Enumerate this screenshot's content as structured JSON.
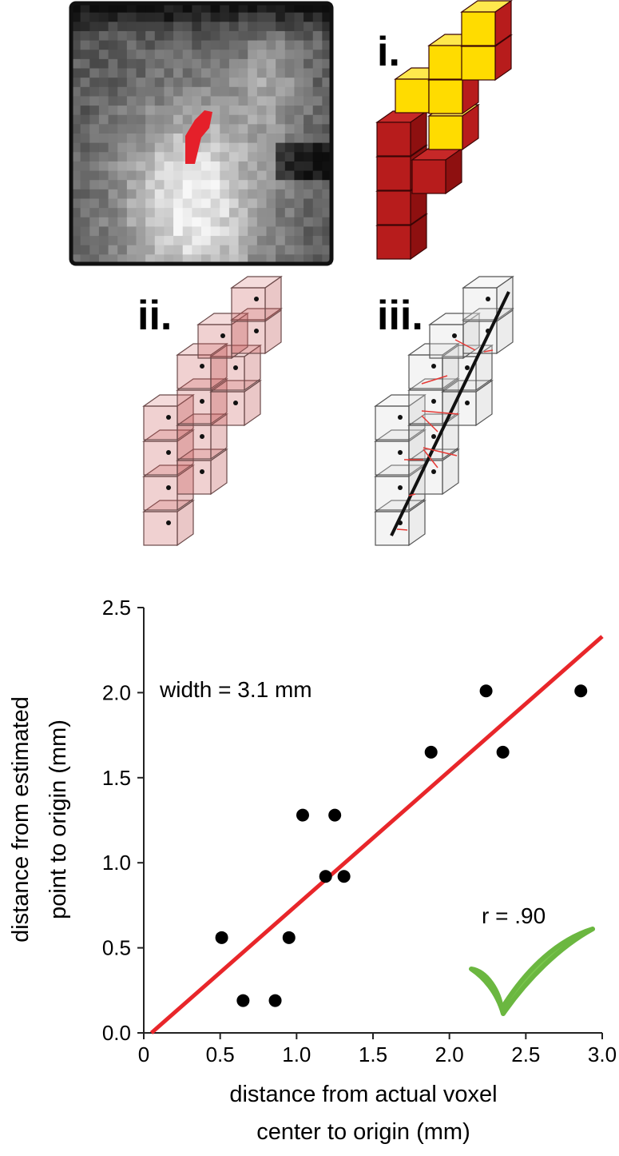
{
  "panel_labels": [
    "i.",
    "ii.",
    "iii."
  ],
  "chart_data": {
    "type": "scatter",
    "x": [
      0.51,
      0.65,
      0.86,
      0.95,
      1.04,
      1.25,
      1.19,
      1.31,
      1.88,
      2.24,
      2.35,
      2.86
    ],
    "values": [
      0.56,
      0.19,
      0.19,
      0.56,
      1.28,
      1.28,
      0.92,
      0.92,
      1.65,
      2.01,
      1.65,
      2.01
    ],
    "color": "#000000",
    "fit": {
      "x": [
        0.05,
        3.0
      ],
      "values": [
        0,
        2.33
      ],
      "color": "#e8262a"
    },
    "xlim": [
      0,
      3
    ],
    "ylim": [
      0,
      2.5
    ],
    "xticks": [
      0,
      0.5,
      {
        "value": 1,
        "label": "1.0"
      },
      1.5,
      {
        "value": 2,
        "label": "2.0"
      },
      2.5,
      {
        "value": 3,
        "label": "3.0"
      }
    ],
    "yticks": [
      {
        "value": 0,
        "label": "0.0"
      },
      0.5,
      {
        "value": 1,
        "label": "1.0"
      },
      1.5,
      {
        "value": 2,
        "label": "2.0"
      },
      2.5
    ],
    "xlabel": [
      "distance from actual voxel",
      "center to origin (mm)"
    ],
    "ylabel": [
      "distance from estimated",
      "point to origin (mm)"
    ],
    "annotations": [
      "width = 3.1 mm",
      "r = .90"
    ]
  }
}
